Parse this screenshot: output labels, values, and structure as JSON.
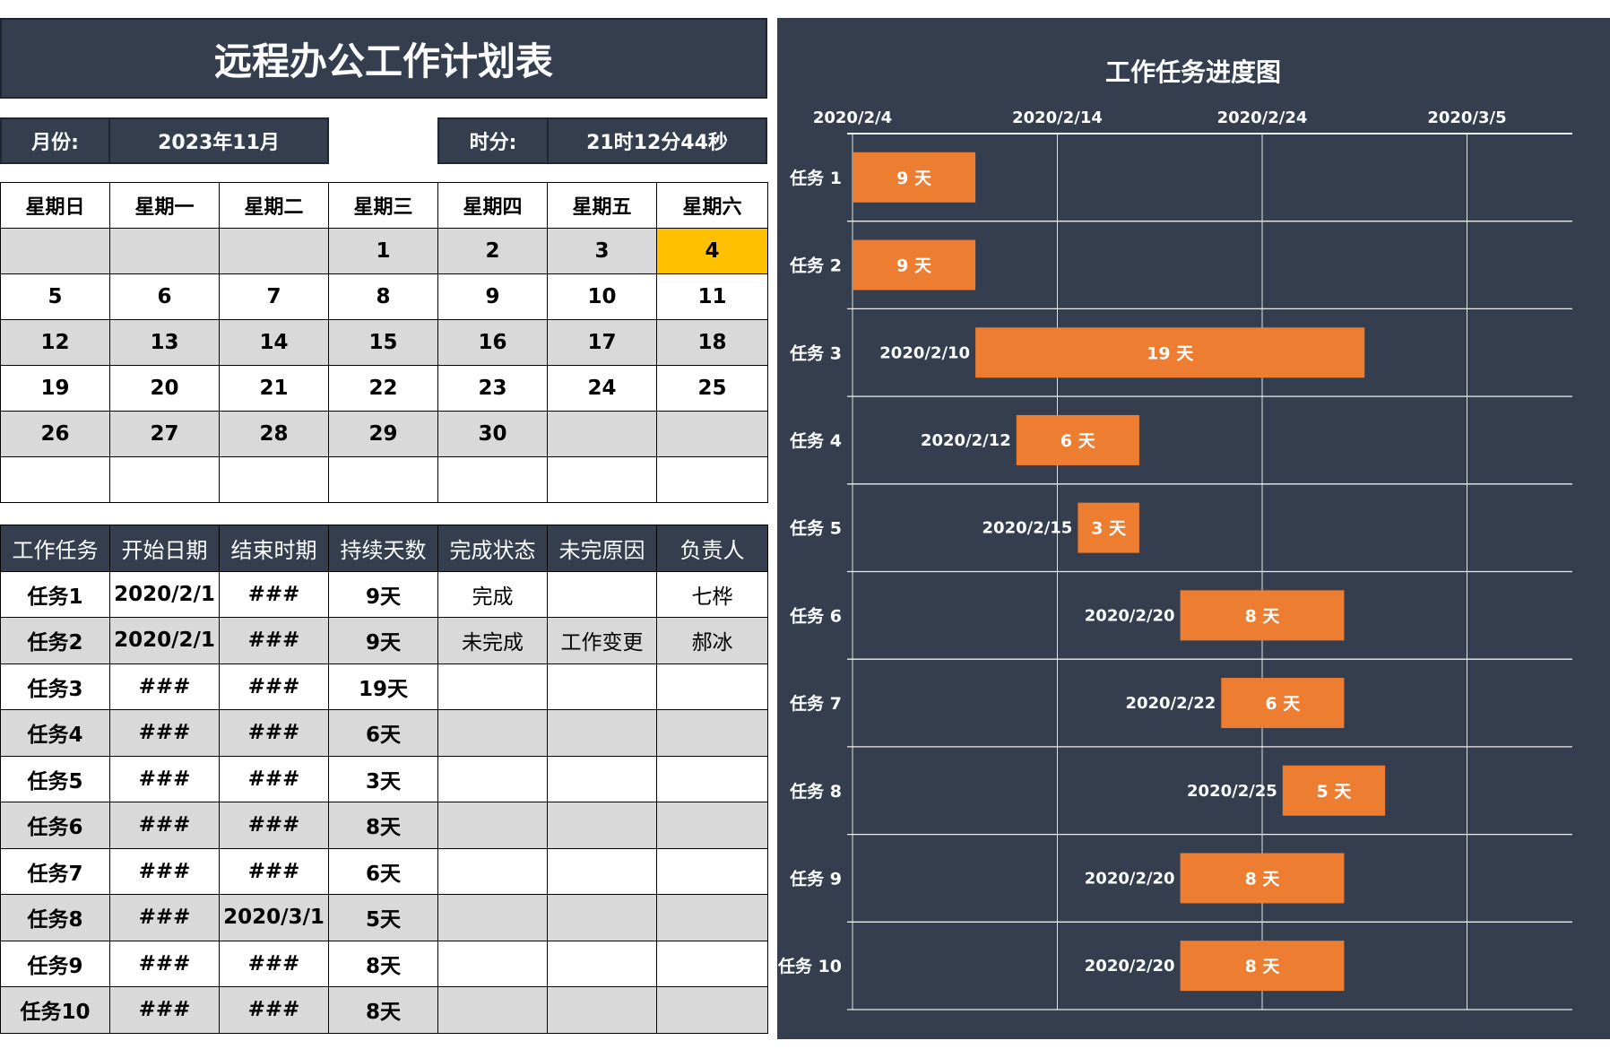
{
  "sheet": {
    "title": "远程办公工作计划表",
    "month_label": "月份:",
    "month_value": "2023年11月",
    "time_label": "时分:",
    "time_value": "21时12分44秒"
  },
  "calendar": {
    "weekdays": [
      "星期日",
      "星期一",
      "星期二",
      "星期三",
      "星期四",
      "星期五",
      "星期六"
    ],
    "weeks": [
      [
        "",
        "",
        "",
        "1",
        "2",
        "3",
        "4"
      ],
      [
        "5",
        "6",
        "7",
        "8",
        "9",
        "10",
        "11"
      ],
      [
        "12",
        "13",
        "14",
        "15",
        "16",
        "17",
        "18"
      ],
      [
        "19",
        "20",
        "21",
        "22",
        "23",
        "24",
        "25"
      ],
      [
        "26",
        "27",
        "28",
        "29",
        "30",
        "",
        ""
      ],
      [
        "",
        "",
        "",
        "",
        "",
        "",
        ""
      ]
    ],
    "highlight_day": "4",
    "highlight_color": "#ffc000"
  },
  "tasks": {
    "headers": [
      "工作任务",
      "开始日期",
      "结束时期",
      "持续天数",
      "完成状态",
      "未完原因",
      "负责人"
    ],
    "rows": [
      [
        "任务1",
        "2020/2/1",
        "###",
        "9天",
        "完成",
        "",
        "七桦"
      ],
      [
        "任务2",
        "2020/2/1",
        "###",
        "9天",
        "未完成",
        "工作变更",
        "郝冰"
      ],
      [
        "任务3",
        "###",
        "###",
        "19天",
        "",
        "",
        ""
      ],
      [
        "任务4",
        "###",
        "###",
        "6天",
        "",
        "",
        ""
      ],
      [
        "任务5",
        "###",
        "###",
        "3天",
        "",
        "",
        ""
      ],
      [
        "任务6",
        "###",
        "###",
        "8天",
        "",
        "",
        ""
      ],
      [
        "任务7",
        "###",
        "###",
        "6天",
        "",
        "",
        ""
      ],
      [
        "任务8",
        "###",
        "2020/3/1",
        "5天",
        "",
        "",
        ""
      ],
      [
        "任务9",
        "###",
        "###",
        "8天",
        "",
        "",
        ""
      ],
      [
        "任务10",
        "###",
        "###",
        "8天",
        "",
        "",
        ""
      ]
    ]
  },
  "chart_data": {
    "type": "bar",
    "orientation": "horizontal-gantt",
    "title": "工作任务进度图",
    "x_axis_position": "top",
    "x_ticks": [
      "2020/2/4",
      "2020/2/14",
      "2020/2/24",
      "2020/3/5"
    ],
    "xlim": [
      "2020/2/4",
      "2020/3/9"
    ],
    "grid": true,
    "categories": [
      "任务 1",
      "任务 2",
      "任务 3",
      "任务 4",
      "任务 5",
      "任务 6",
      "任务 7",
      "任务 8",
      "任务 9",
      "任务 10"
    ],
    "series": [
      {
        "start": [
          "2020/2/1",
          "2020/2/1",
          "2020/2/10",
          "2020/2/12",
          "2020/2/15",
          "2020/2/20",
          "2020/2/22",
          "2020/2/25",
          "2020/2/20",
          "2020/2/20"
        ],
        "duration_days": [
          9,
          9,
          19,
          6,
          3,
          8,
          6,
          5,
          8,
          8
        ],
        "bar_labels": [
          "9 天",
          "9 天",
          "19 天",
          "6 天",
          "3 天",
          "8 天",
          "6 天",
          "5 天",
          "8 天",
          "8 天"
        ],
        "start_labels": [
          "",
          "",
          "2020/2/10",
          "2020/2/12",
          "2020/2/15",
          "2020/2/20",
          "2020/2/22",
          "2020/2/25",
          "2020/2/20",
          "2020/2/20"
        ]
      }
    ],
    "colors": {
      "bar": "#ed7d31",
      "background": "#343e4f",
      "text": "#ffffff",
      "grid": "#ffffff"
    }
  }
}
